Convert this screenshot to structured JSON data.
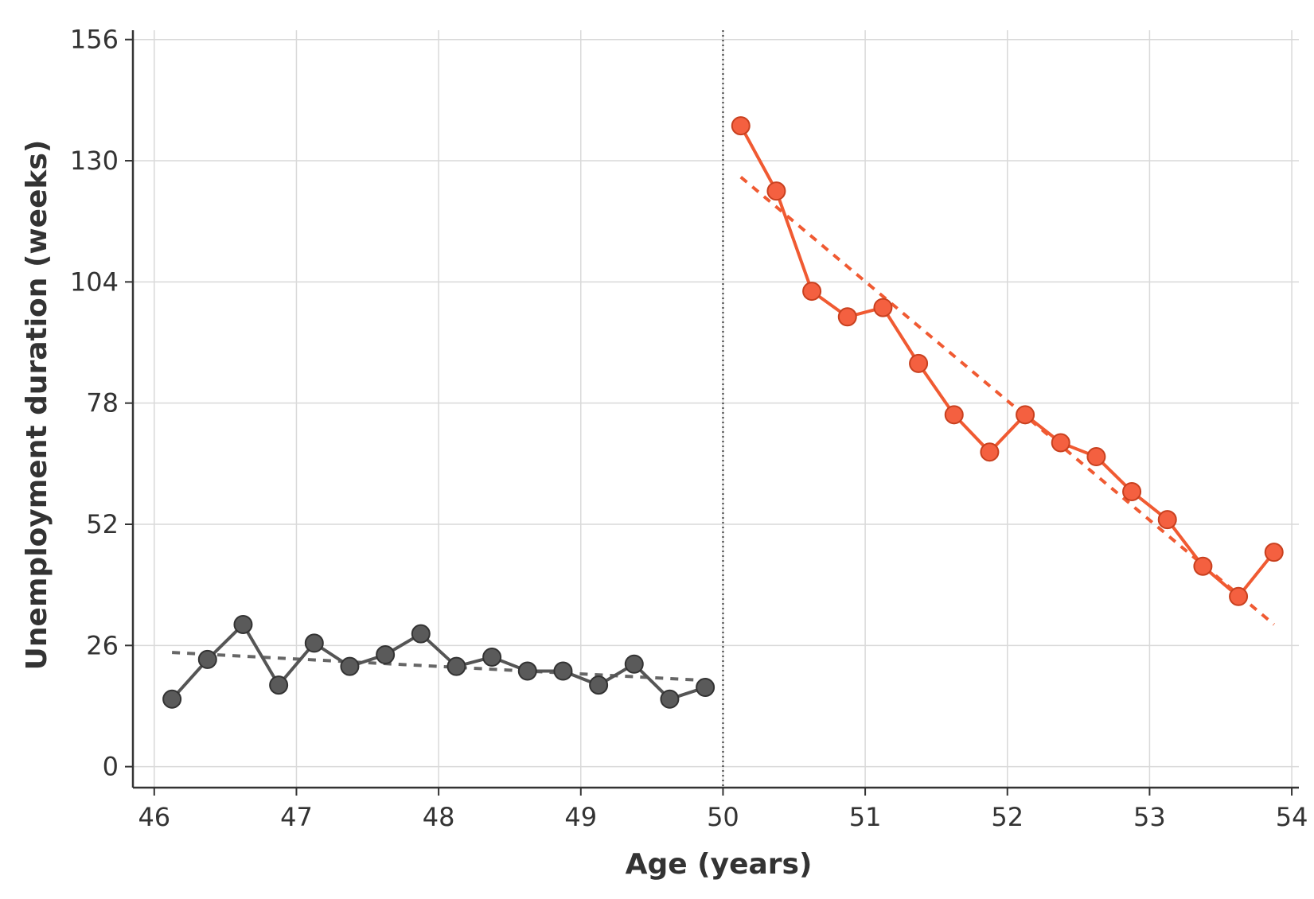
{
  "chart_data": {
    "type": "line",
    "xlabel": "Age (years)",
    "ylabel": "Unemployment duration (weeks)",
    "xlim": [
      45.85,
      54.05
    ],
    "ylim": [
      -4.5,
      158
    ],
    "x_ticks": [
      46,
      47,
      48,
      49,
      50,
      51,
      52,
      53,
      54
    ],
    "y_ticks": [
      0,
      26,
      52,
      78,
      104,
      130,
      156
    ],
    "grid": true,
    "cutoff": 50,
    "series": [
      {
        "color": "#555555",
        "marker_fill": "#5a5a5a",
        "x": [
          46.125,
          46.375,
          46.625,
          46.875,
          47.125,
          47.375,
          47.625,
          47.875,
          48.125,
          48.375,
          48.625,
          48.875,
          49.125,
          49.375,
          49.625,
          49.875
        ],
        "y": [
          14.5,
          23,
          30.5,
          17.5,
          26.5,
          21.5,
          24,
          28.5,
          21.5,
          23.5,
          20.5,
          20.5,
          17.5,
          22,
          14.5,
          17
        ]
      },
      {
        "color": "#f05a32",
        "marker_fill": "#f46040",
        "x": [
          50.125,
          50.375,
          50.625,
          50.875,
          51.125,
          51.375,
          51.625,
          51.875,
          52.125,
          52.375,
          52.625,
          52.875,
          53.125,
          53.375,
          53.625,
          53.875
        ],
        "y": [
          137.5,
          123.5,
          102,
          96.5,
          98.5,
          86.5,
          75.5,
          67.5,
          75.5,
          69.5,
          66.5,
          59,
          53,
          43,
          36.5,
          46
        ]
      }
    ],
    "fit_lines": [
      {
        "color": "#666666",
        "x": [
          46.125,
          49.875
        ],
        "y": [
          24.5,
          18.5
        ]
      },
      {
        "color": "#f05a32",
        "x": [
          50.125,
          53.875
        ],
        "y": [
          126.5,
          30.5
        ]
      }
    ]
  }
}
